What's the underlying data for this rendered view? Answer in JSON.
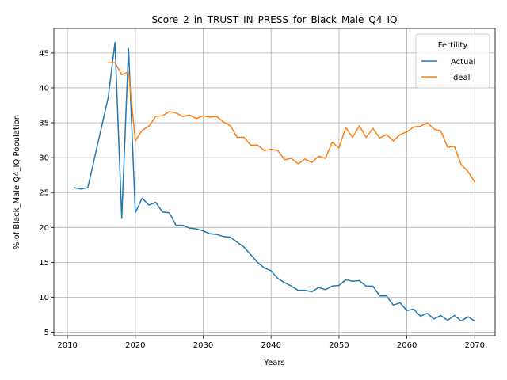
{
  "chart_data": {
    "type": "line",
    "title": "Score_2_in_TRUST_IN_PRESS_for_Black_Male_Q4_IQ",
    "xlabel": "Years",
    "ylabel": "% of Black_Male Q4_IQ Population",
    "xlim": [
      2008,
      2073
    ],
    "ylim": [
      4.5,
      48.5
    ],
    "x_ticks": [
      2010,
      2020,
      2030,
      2040,
      2050,
      2060,
      2070
    ],
    "y_ticks": [
      5,
      10,
      15,
      20,
      25,
      30,
      35,
      40,
      45
    ],
    "grid": true,
    "legend": {
      "title": "Fertility",
      "placement": "top-right"
    },
    "series": [
      {
        "name": "Actual",
        "color": "#1f77b4",
        "x": [
          2011,
          2012,
          2013,
          2016,
          2017,
          2018,
          2019,
          2020,
          2021,
          2022,
          2023,
          2024,
          2025,
          2026,
          2027,
          2028,
          2029,
          2030,
          2031,
          2032,
          2033,
          2034,
          2035,
          2036,
          2037,
          2038,
          2039,
          2040,
          2041,
          2042,
          2043,
          2044,
          2045,
          2046,
          2047,
          2048,
          2049,
          2050,
          2051,
          2052,
          2053,
          2054,
          2055,
          2056,
          2057,
          2058,
          2059,
          2060,
          2061,
          2062,
          2063,
          2064,
          2065,
          2066,
          2067,
          2068,
          2069,
          2070
        ],
        "y": [
          25.7,
          25.5,
          25.7,
          38.6,
          46.5,
          21.3,
          45.6,
          22.1,
          24.2,
          23.2,
          23.6,
          22.2,
          22.1,
          20.3,
          20.3,
          19.9,
          19.8,
          19.5,
          19.1,
          19.0,
          18.7,
          18.6,
          17.9,
          17.2,
          16.1,
          15.0,
          14.2,
          13.8,
          12.7,
          12.1,
          11.6,
          11.0,
          11.0,
          10.8,
          11.4,
          11.1,
          11.6,
          11.7,
          12.5,
          12.3,
          12.4,
          11.6,
          11.6,
          10.2,
          10.2,
          8.9,
          9.2,
          8.1,
          8.3,
          7.3,
          7.7,
          6.9,
          7.4,
          6.7,
          7.4,
          6.6,
          7.2,
          6.6
        ]
      },
      {
        "name": "Ideal",
        "color": "#ff7f0e",
        "x": [
          2016,
          2017,
          2018,
          2019,
          2020,
          2021,
          2022,
          2023,
          2024,
          2025,
          2026,
          2027,
          2028,
          2029,
          2030,
          2031,
          2032,
          2033,
          2034,
          2035,
          2036,
          2037,
          2038,
          2039,
          2040,
          2041,
          2042,
          2043,
          2044,
          2045,
          2046,
          2047,
          2048,
          2049,
          2050,
          2051,
          2052,
          2053,
          2054,
          2055,
          2056,
          2057,
          2058,
          2059,
          2060,
          2061,
          2062,
          2063,
          2064,
          2065,
          2066,
          2067,
          2068,
          2069,
          2070
        ],
        "y": [
          43.6,
          43.6,
          41.9,
          42.3,
          32.4,
          33.9,
          34.5,
          35.9,
          36.0,
          36.6,
          36.4,
          35.9,
          36.1,
          35.6,
          36.0,
          35.8,
          35.9,
          35.1,
          34.6,
          32.9,
          32.9,
          31.8,
          31.8,
          31.0,
          31.2,
          31.0,
          29.7,
          29.9,
          29.1,
          29.8,
          29.3,
          30.2,
          29.9,
          32.2,
          31.4,
          34.3,
          32.9,
          34.6,
          32.9,
          34.2,
          32.8,
          33.3,
          32.4,
          33.3,
          33.7,
          34.4,
          34.5,
          35.0,
          34.1,
          33.8,
          31.5,
          31.6,
          29.0,
          28.0,
          26.5
        ]
      }
    ]
  }
}
